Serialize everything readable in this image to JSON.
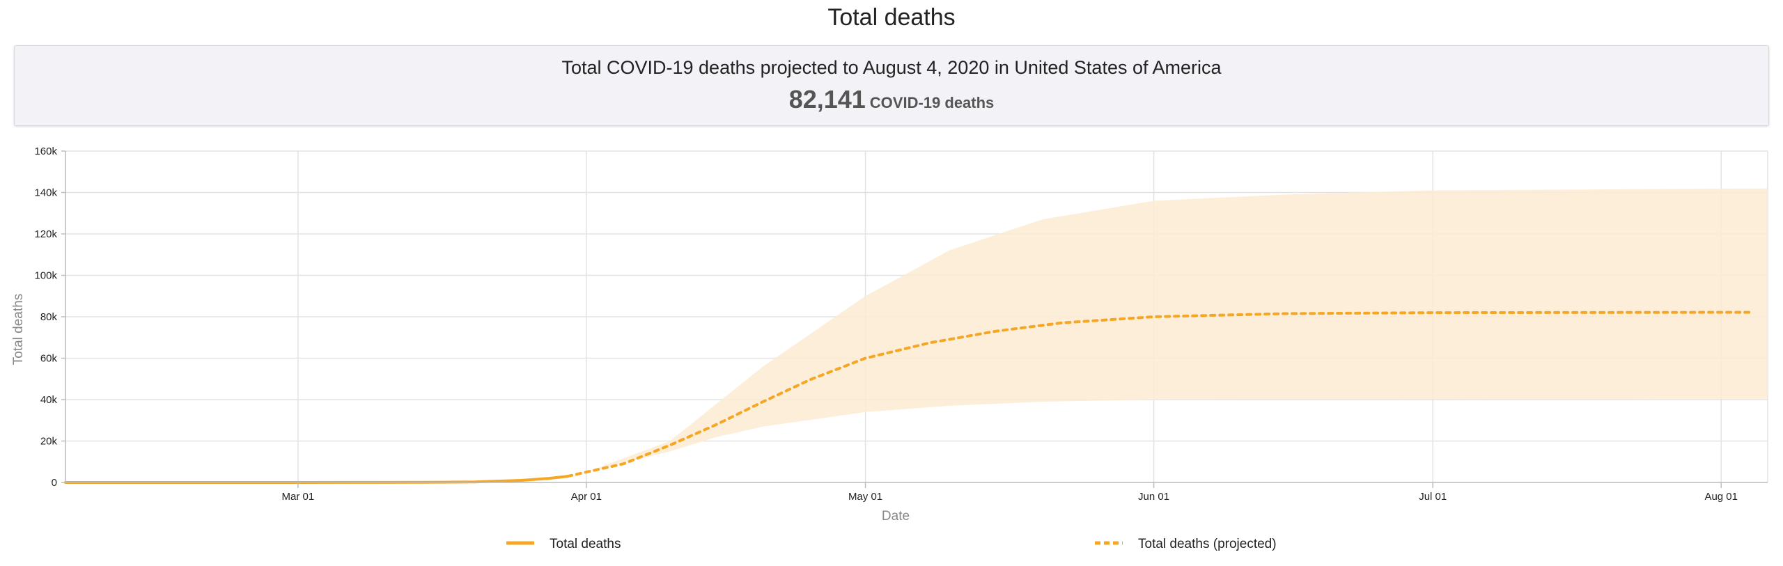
{
  "page_title": "Total deaths",
  "summary": {
    "line": "Total COVID-19 deaths projected to August 4, 2020 in United States of America",
    "number": "82,141",
    "unit": "COVID-19 deaths"
  },
  "colors": {
    "series": "#f5a623",
    "band": "#fdebd3",
    "grid": "#e3e3e3",
    "axis": "#bcbcbc"
  },
  "chart_data": {
    "type": "line",
    "title": "",
    "xlabel": "Date",
    "ylabel": "Total deaths",
    "x_range": [
      "2020-02-05",
      "2020-08-06"
    ],
    "ylim": [
      0,
      160000
    ],
    "y_ticks": [
      {
        "value": 0,
        "label": "0"
      },
      {
        "value": 20000,
        "label": "20k"
      },
      {
        "value": 40000,
        "label": "40k"
      },
      {
        "value": 60000,
        "label": "60k"
      },
      {
        "value": 80000,
        "label": "80k"
      },
      {
        "value": 100000,
        "label": "100k"
      },
      {
        "value": 120000,
        "label": "120k"
      },
      {
        "value": 140000,
        "label": "140k"
      },
      {
        "value": 160000,
        "label": "160k"
      }
    ],
    "x_ticks": [
      {
        "date": "2020-03-01",
        "label": "Mar 01"
      },
      {
        "date": "2020-04-01",
        "label": "Apr 01"
      },
      {
        "date": "2020-05-01",
        "label": "May 01"
      },
      {
        "date": "2020-06-01",
        "label": "Jun 01"
      },
      {
        "date": "2020-07-01",
        "label": "Jul 01"
      },
      {
        "date": "2020-08-01",
        "label": "Aug 01"
      }
    ],
    "grid": true,
    "legend_position": "bottom",
    "series": [
      {
        "name": "Total deaths",
        "style": "solid",
        "points": [
          [
            "2020-02-05",
            0
          ],
          [
            "2020-02-20",
            0
          ],
          [
            "2020-03-01",
            2
          ],
          [
            "2020-03-10",
            30
          ],
          [
            "2020-03-15",
            70
          ],
          [
            "2020-03-20",
            250
          ],
          [
            "2020-03-25",
            1000
          ],
          [
            "2020-03-28",
            2000
          ],
          [
            "2020-03-30",
            3000
          ]
        ]
      },
      {
        "name": "Total deaths (projected)",
        "style": "dashed",
        "points": [
          [
            "2020-03-30",
            3000
          ],
          [
            "2020-04-01",
            5000
          ],
          [
            "2020-04-05",
            9000
          ],
          [
            "2020-04-10",
            18000
          ],
          [
            "2020-04-15",
            28000
          ],
          [
            "2020-04-20",
            39000
          ],
          [
            "2020-04-25",
            49500
          ],
          [
            "2020-05-01",
            60000
          ],
          [
            "2020-05-08",
            67500
          ],
          [
            "2020-05-15",
            73000
          ],
          [
            "2020-05-22",
            77000
          ],
          [
            "2020-06-01",
            80000
          ],
          [
            "2020-06-15",
            81500
          ],
          [
            "2020-07-01",
            82000
          ],
          [
            "2020-08-04",
            82141
          ]
        ]
      }
    ],
    "uncertainty_band": {
      "points": [
        [
          "2020-03-30",
          3000,
          3000
        ],
        [
          "2020-04-01",
          5000,
          5000
        ],
        [
          "2020-04-10",
          15000,
          20000
        ],
        [
          "2020-04-15",
          22000,
          38000
        ],
        [
          "2020-04-20",
          27000,
          56000
        ],
        [
          "2020-05-01",
          34000,
          90000
        ],
        [
          "2020-05-10",
          37000,
          112000
        ],
        [
          "2020-05-20",
          39000,
          127000
        ],
        [
          "2020-06-01",
          40000,
          136000
        ],
        [
          "2020-06-15",
          40200,
          139000
        ],
        [
          "2020-07-01",
          40300,
          141000
        ],
        [
          "2020-08-06",
          40400,
          142000
        ]
      ]
    }
  }
}
